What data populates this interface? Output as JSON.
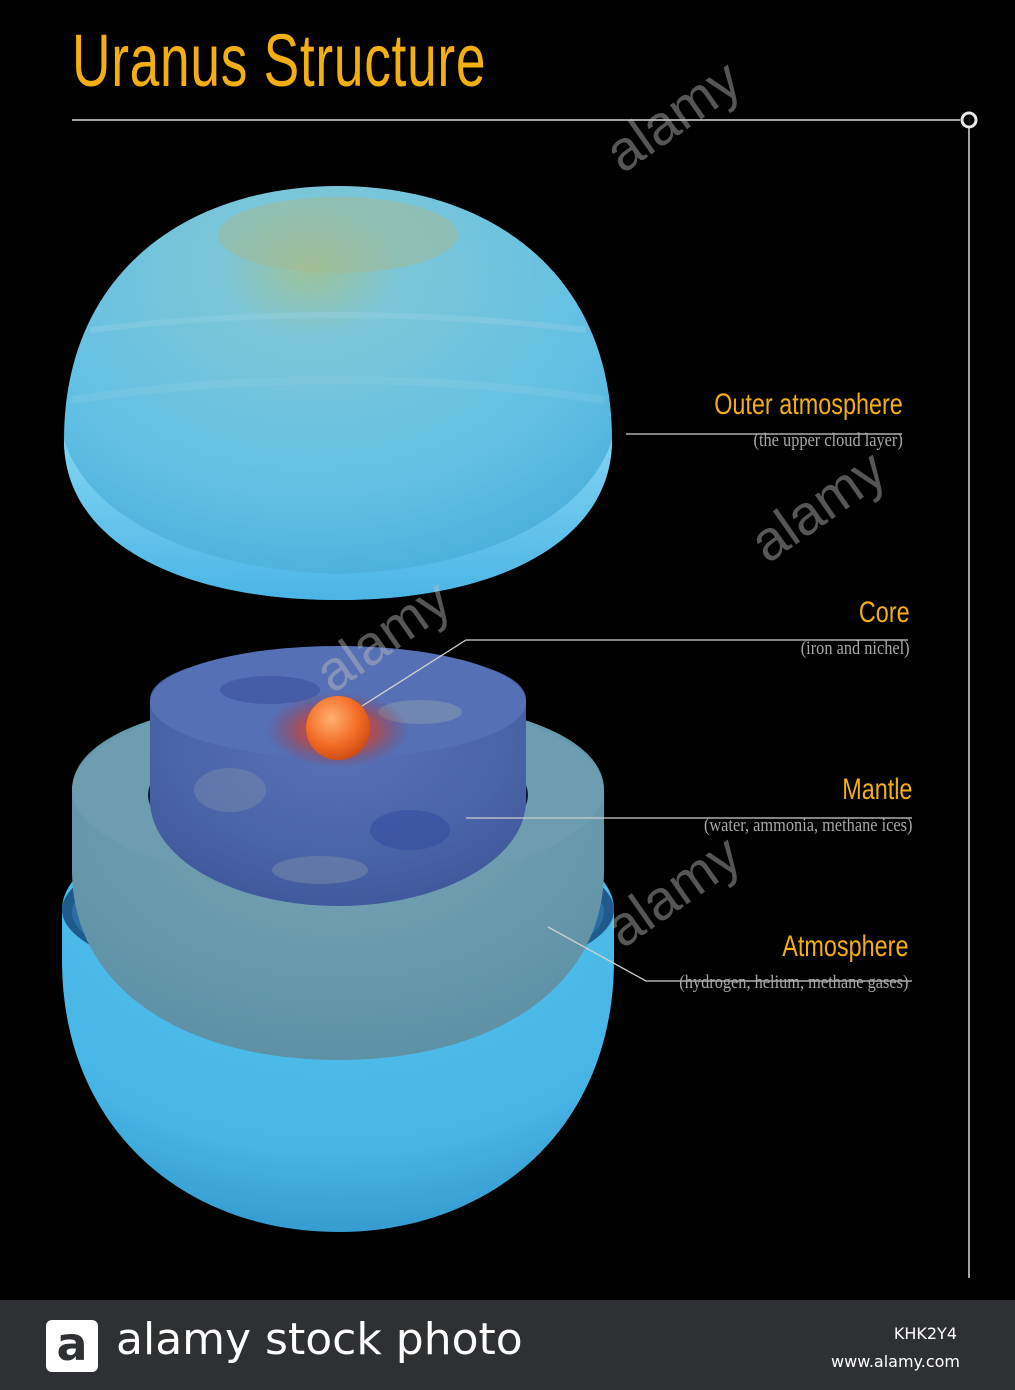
{
  "title": "Uranus Structure",
  "layers": [
    {
      "name": "Outer atmosphere",
      "description": "(the upper cloud layer)"
    },
    {
      "name": "Core",
      "description": "(iron and nichel)"
    },
    {
      "name": "Mantle",
      "description": "(water, ammonia, methane ices)"
    },
    {
      "name": "Atmosphere",
      "description": "(hydrogen, helium, methane gases)"
    }
  ],
  "watermark": {
    "text": "alamy",
    "tile_letter": "a"
  },
  "footer": {
    "logo_letter": "a",
    "brand": "alamy stock photo",
    "image_code": "KHK2Y4",
    "site": "www.alamy.com"
  },
  "colors": {
    "title": "#f3ae12",
    "label_name": "#f3ae12",
    "label_desc": "#a7a7a7",
    "planet_blue": "#5ec8e8",
    "mantle_blue": "#4a64b0",
    "core_orange": "#f07020",
    "footer_bg": "#2f3033"
  }
}
